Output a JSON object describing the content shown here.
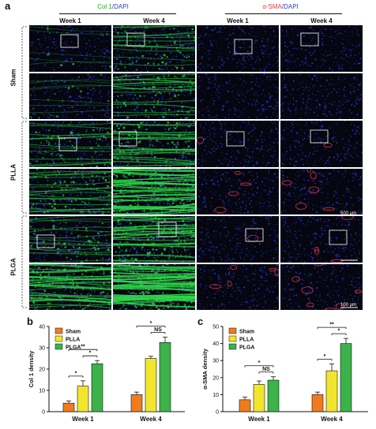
{
  "figure_a": {
    "letter": "a",
    "groups": [
      {
        "marker": "Col 1",
        "sep": "/",
        "counter": "DAPI"
      },
      {
        "marker": "α-SMA",
        "sep": "/",
        "counter": "DAPI"
      }
    ],
    "weeks": [
      "Week 1",
      "Week 4",
      "Week 1",
      "Week 4"
    ],
    "rows": [
      "Sham",
      "PLLA",
      "PLGA"
    ],
    "scale_bars": [
      "500 μm",
      "100 μm"
    ]
  },
  "colors": {
    "sham": "#f07b1f",
    "plla": "#f2e52e",
    "plga": "#3bb24a",
    "dapi": "#2b3bd8",
    "col1": "#2fd64a",
    "sma": "#e8334a"
  },
  "chart_data": [
    {
      "panel": "b",
      "type": "bar",
      "categories": [
        "Week 1",
        "Week 4"
      ],
      "series": [
        {
          "name": "Sham",
          "values": [
            4.0,
            8.0
          ],
          "errors": [
            1.0,
            1.2
          ]
        },
        {
          "name": "PLLA",
          "values": [
            12.0,
            25.0
          ],
          "errors": [
            2.5,
            1.0
          ]
        },
        {
          "name": "PLGA",
          "values": [
            22.5,
            32.5
          ],
          "errors": [
            1.5,
            2.5
          ]
        }
      ],
      "ylabel": "Col 1 density",
      "ylim": [
        0,
        40
      ],
      "yticks": [
        0,
        10,
        20,
        30,
        40
      ],
      "legend": "top-left",
      "significance": [
        {
          "week": "Week 1",
          "from": 0,
          "to": 1,
          "label": "*"
        },
        {
          "week": "Week 1",
          "from": 0,
          "to": 2,
          "label": "**"
        },
        {
          "week": "Week 1",
          "from": 1,
          "to": 2,
          "label": "*"
        },
        {
          "week": "Week 4",
          "from": 0,
          "to": 2,
          "label": "*"
        },
        {
          "week": "Week 4",
          "from": 1,
          "to": 2,
          "label": "NS"
        }
      ]
    },
    {
      "panel": "c",
      "type": "bar",
      "categories": [
        "Week 1",
        "Week 4"
      ],
      "series": [
        {
          "name": "Sham",
          "values": [
            7.0,
            10.0
          ],
          "errors": [
            1.5,
            1.5
          ]
        },
        {
          "name": "PLLA",
          "values": [
            16.0,
            24.0
          ],
          "errors": [
            2.0,
            4.0
          ]
        },
        {
          "name": "PLGA",
          "values": [
            18.5,
            40.0
          ],
          "errors": [
            2.0,
            3.0
          ]
        }
      ],
      "ylabel": "α-SMA density",
      "ylim": [
        0,
        50
      ],
      "yticks": [
        0,
        10,
        20,
        30,
        40,
        50
      ],
      "legend": "top-left",
      "significance": [
        {
          "week": "Week 1",
          "from": 0,
          "to": 2,
          "label": "*"
        },
        {
          "week": "Week 1",
          "from": 1,
          "to": 2,
          "label": "NS"
        },
        {
          "week": "Week 4",
          "from": 0,
          "to": 1,
          "label": "*"
        },
        {
          "week": "Week 4",
          "from": 0,
          "to": 2,
          "label": "**"
        },
        {
          "week": "Week 4",
          "from": 1,
          "to": 2,
          "label": "*"
        }
      ]
    }
  ]
}
